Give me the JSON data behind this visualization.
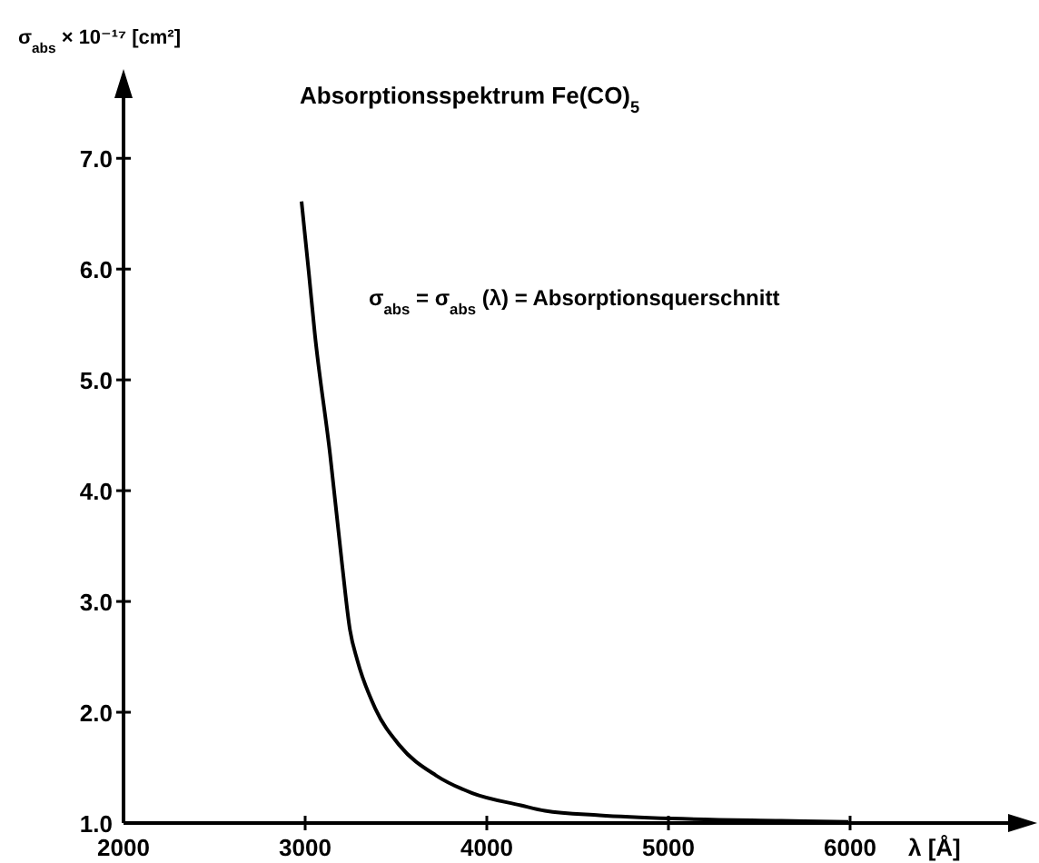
{
  "chart_data": {
    "type": "line",
    "title": "Absorptionsspektrum Fe(CO)$_{5}$",
    "xlabel": "λ [Å]",
    "ylabel": "σ$_{abs}$ × 10⁻¹⁷ [cm²]",
    "annotations": [
      "σ$_{abs}$ = σ$_{abs}$ (λ) = Absorptionsquerschnitt"
    ],
    "xlim": [
      2000,
      6990
    ],
    "ylim": [
      1.0,
      7.74
    ],
    "xticks": [
      2000,
      3000,
      4000,
      5000,
      6000
    ],
    "yticks": [
      {
        "value": 1,
        "label": "1.0"
      },
      {
        "value": 2,
        "label": "2.0"
      },
      {
        "value": 3,
        "label": "3.0"
      },
      {
        "value": 4,
        "label": "4.0"
      },
      {
        "value": 5,
        "label": "5.0"
      },
      {
        "value": 6,
        "label": "6.0"
      },
      {
        "value": 7,
        "label": "7.0"
      }
    ],
    "grid": false,
    "marker": "none",
    "line_style": "solid",
    "series": [
      {
        "color": "#000000",
        "x": [
          2980,
          3020,
          3053,
          3137,
          3203,
          3247,
          3287,
          3387,
          3520,
          3720,
          3920,
          4187,
          4320,
          4620,
          5020,
          5620,
          5990
        ],
        "values": [
          6.61,
          5.97,
          5.42,
          4.33,
          3.34,
          2.74,
          2.47,
          2.03,
          1.7,
          1.43,
          1.27,
          1.16,
          1.11,
          1.07,
          1.04,
          1.02,
          1.01
        ]
      }
    ]
  }
}
